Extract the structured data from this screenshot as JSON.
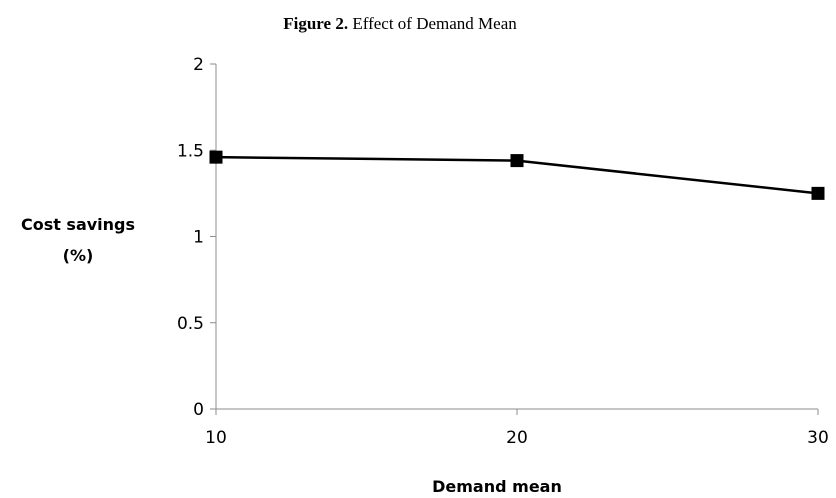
{
  "caption": {
    "label": "Figure 2.",
    "text": "Effect of Demand Mean"
  },
  "chart_data": {
    "type": "line",
    "title": "Figure 2. Effect of Demand Mean",
    "xlabel": "Demand mean",
    "ylabel_lines": [
      "Cost savings",
      "(%)"
    ],
    "x": [
      10,
      20,
      30
    ],
    "xlim": [
      10,
      30
    ],
    "xticks": [
      10,
      20,
      30
    ],
    "ylim": [
      0,
      2
    ],
    "yticks": [
      0,
      0.5,
      1,
      1.5,
      2
    ],
    "grid": false,
    "legend": "none",
    "series": [
      {
        "values": [
          1.46,
          1.44,
          1.25
        ],
        "color": "#000000",
        "marker": "square"
      }
    ]
  }
}
